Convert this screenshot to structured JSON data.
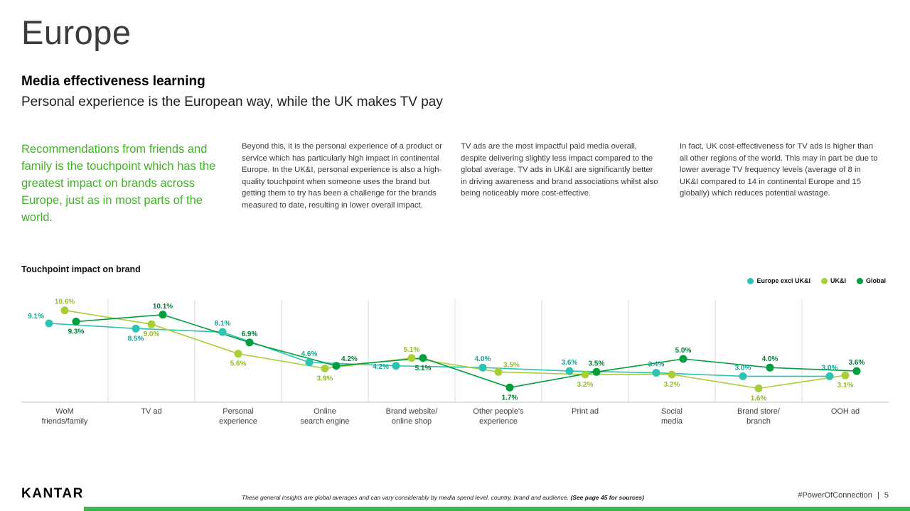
{
  "page": {
    "title": "Europe",
    "heading": "Media effectiveness learning",
    "subheading": "Personal experience is the European way, while the UK makes TV pay"
  },
  "insights": {
    "highlight": "Recommendations from friends and family is the touchpoint which has the greatest impact on brands across Europe, just as in most parts of the world.",
    "col2": "Beyond this, it is the personal experience of a product or service which has particularly high impact in continental Europe. In the UK&I, personal experience is also a high-quality touchpoint when someone uses the brand but getting them to try has been a challenge for the brands measured to date, resulting in lower overall impact.",
    "col3": "TV ads are the most impactful paid media overall, despite delivering slightly less impact compared to the global average. TV ads in UK&I are significantly better in driving awareness and brand associations whilst also being noticeably more cost-effective.",
    "col4": "In fact, UK cost-effectiveness for TV ads is higher than all other regions of the world. This may in part be due to lower average TV frequency levels (average of 8 in UK&I compared to 14 in continental Europe and 15 globally) which reduces potential wastage."
  },
  "chart": {
    "title": "Touchpoint impact on brand"
  },
  "chart_data": {
    "type": "line",
    "title": "Touchpoint impact on brand",
    "unit": "%",
    "ylim": [
      0,
      11.8
    ],
    "grid": "vertical-separators",
    "legend_position": "top-right",
    "categories": [
      "WoM friends/family",
      "TV ad",
      "Personal experience",
      "Online search engine",
      "Brand website/ online shop",
      "Other people's experience",
      "Print ad",
      "Social media",
      "Brand store/ branch",
      "OOH ad"
    ],
    "category_lines": [
      [
        "WoM",
        "friends/family"
      ],
      [
        "TV ad"
      ],
      [
        "Personal",
        "experience"
      ],
      [
        "Online",
        "search engine"
      ],
      [
        "Brand website/",
        "online shop"
      ],
      [
        "Other people's",
        "experience"
      ],
      [
        "Print ad"
      ],
      [
        "Social",
        "media"
      ],
      [
        "Brand store/",
        "branch"
      ],
      [
        "OOH ad"
      ]
    ],
    "series": [
      {
        "name": "Europe excl UK&I",
        "color": "#2cc3b2",
        "label_color": "#14a294",
        "values": [
          9.1,
          8.5,
          8.1,
          4.6,
          4.2,
          4.0,
          3.6,
          3.4,
          3.0,
          3.0
        ],
        "label_pos": [
          "above-left",
          "below",
          "above",
          "above",
          "left",
          "above",
          "above",
          "above",
          "above",
          "above"
        ]
      },
      {
        "name": "UK&I",
        "color": "#a8ce38",
        "label_color": "#93b92c",
        "values": [
          10.6,
          9.0,
          5.6,
          3.9,
          5.1,
          3.5,
          3.2,
          3.2,
          1.6,
          3.1
        ],
        "label_pos": [
          "above",
          "below",
          "below",
          "below",
          "above",
          "above-right",
          "below",
          "below",
          "below",
          "below"
        ]
      },
      {
        "name": "Global",
        "color": "#009e3d",
        "label_color": "#007a34",
        "values": [
          9.3,
          10.1,
          6.9,
          4.2,
          5.1,
          1.7,
          3.5,
          5.0,
          4.0,
          3.6
        ],
        "label_pos": [
          "below",
          "above",
          "above",
          "above-right",
          "below",
          "below",
          "above",
          "above",
          "above",
          "above"
        ]
      }
    ]
  },
  "footer": {
    "logo": "KANTAR",
    "note": "These general insights are global averages and can vary considerably by media spend level, country, brand and audience.",
    "note_bold": " (See page 45 for sources)",
    "hashtag": "#PowerOfConnection",
    "divider": "|",
    "page_number": "5"
  },
  "colors": {
    "accent_green": "#43b02a",
    "bottom_bar": "#3db549"
  }
}
